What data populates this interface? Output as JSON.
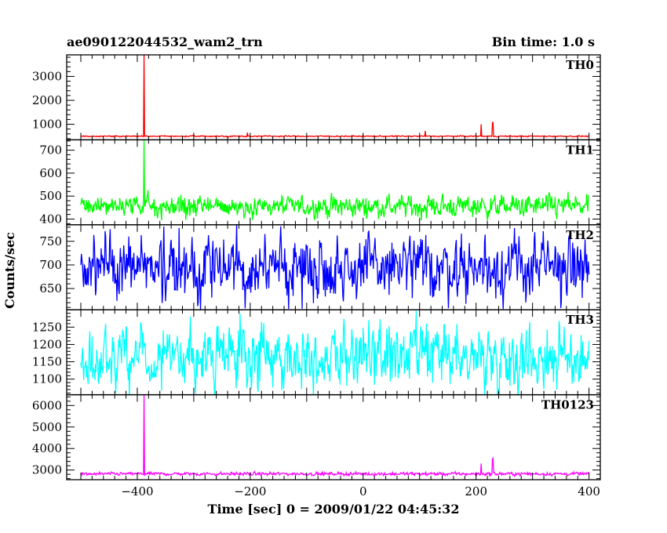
{
  "header": {
    "title": "ae090122044532_wam2_trn",
    "bin_time": "Bin time: 1.0 s"
  },
  "ylabel": "Counts/sec",
  "xlabel": "Time [sec] 0 = 2009/01/22 04:45:32",
  "chart_data": {
    "type": "line",
    "title": "ae090122044532_wam2_trn",
    "subtitle": "Bin time: 1.0 s",
    "xlabel": "Time [sec] 0 = 2009/01/22 04:45:32",
    "ylabel": "Counts/sec",
    "xlim": [
      -525,
      420
    ],
    "x_start": -500,
    "x_end": 400,
    "x_ticks": [
      -400,
      -200,
      0,
      200,
      400
    ],
    "x_tick_labels": [
      "−400",
      "−200",
      "0",
      "200",
      "400"
    ],
    "panels": [
      {
        "name": "TH0",
        "color": "#ff0000",
        "ylim": [
          350,
          3900
        ],
        "y_ticks": [
          1000,
          2000,
          3000
        ],
        "y_tick_labels": [
          "1000",
          "2000",
          "3000"
        ],
        "baseline": 500,
        "noise": 15,
        "spikes": [
          {
            "x": -388,
            "y": 3900
          },
          {
            "x": 209,
            "y": 1000
          },
          {
            "x": 230,
            "y": 1100
          },
          {
            "x": 229,
            "y": 1050
          },
          {
            "x": 110,
            "y": 720
          },
          {
            "x": -205,
            "y": 650
          }
        ]
      },
      {
        "name": "TH1",
        "color": "#00ff00",
        "ylim": [
          375,
          745
        ],
        "y_ticks": [
          400,
          500,
          600,
          700
        ],
        "y_tick_labels": [
          "400",
          "500",
          "600",
          "700"
        ],
        "baseline": 455,
        "noise": 28,
        "spikes": [
          {
            "x": -388,
            "y": 745
          }
        ]
      },
      {
        "name": "TH2",
        "color": "#0000ff",
        "ylim": [
          605,
          785
        ],
        "y_ticks": [
          650,
          700,
          750
        ],
        "y_tick_labels": [
          "650",
          "700",
          "750"
        ],
        "baseline": 695,
        "noise": 38,
        "spikes": []
      },
      {
        "name": "TH3",
        "color": "#00ffff",
        "ylim": [
          1055,
          1300
        ],
        "y_ticks": [
          1100,
          1150,
          1200,
          1250
        ],
        "y_tick_labels": [
          "1100",
          "1150",
          "1200",
          "1250"
        ],
        "baseline": 1165,
        "noise": 52,
        "spikes": []
      },
      {
        "name": "TH0123",
        "color": "#ff00ff",
        "ylim": [
          2550,
          6500
        ],
        "y_ticks": [
          3000,
          4000,
          5000,
          6000
        ],
        "y_tick_labels": [
          "3000",
          "4000",
          "5000",
          "6000"
        ],
        "baseline": 2820,
        "noise": 45,
        "spikes": [
          {
            "x": -388,
            "y": 6500
          },
          {
            "x": 209,
            "y": 3300
          },
          {
            "x": 230,
            "y": 3550
          },
          {
            "x": 229,
            "y": 3500
          }
        ]
      }
    ]
  }
}
